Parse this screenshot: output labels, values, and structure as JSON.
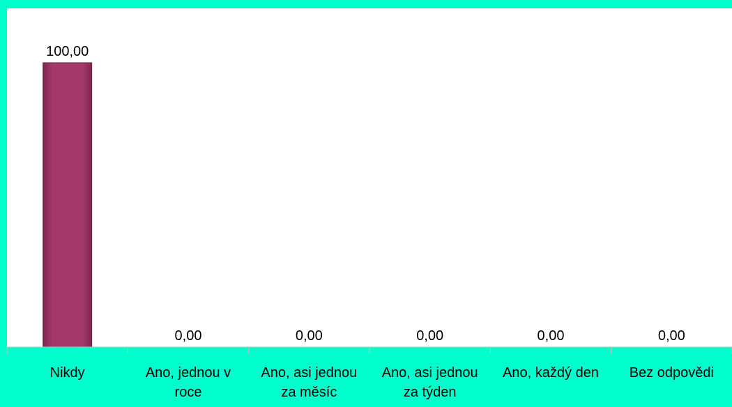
{
  "colors": {
    "background": "#00FFCC",
    "plot_area": "#FFFFFF",
    "bar": "#A3386B",
    "axis": "#BFBFBF",
    "text": "#000000"
  },
  "chart_data": {
    "type": "bar",
    "categories": [
      [
        "Nikdy"
      ],
      [
        "Ano, jednou v",
        "roce"
      ],
      [
        "Ano, asi jednou",
        "za měsíc"
      ],
      [
        "Ano, asi jednou",
        "za týden"
      ],
      [
        "Ano, každý den"
      ],
      [
        "Bez odpovědi"
      ]
    ],
    "values": [
      100,
      0,
      0,
      0,
      0,
      0
    ],
    "data_labels": [
      "100,00",
      "0,00",
      "0,00",
      "0,00",
      "0,00",
      "0,00"
    ],
    "title": "",
    "xlabel": "",
    "ylabel": "",
    "ylim": [
      0,
      100
    ],
    "grid": false,
    "legend": "none"
  }
}
